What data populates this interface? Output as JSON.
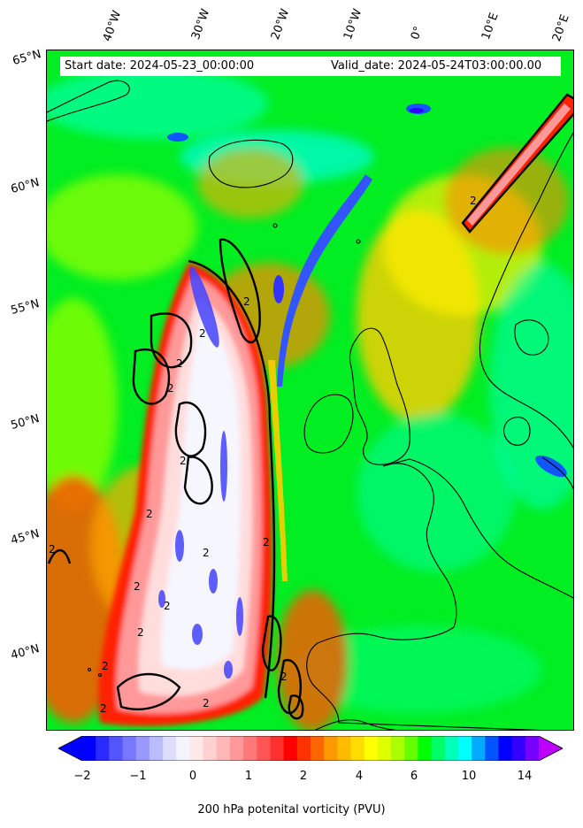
{
  "header": {
    "start_date": "Start date: 2024-05-23_00:00:00",
    "valid_date": "Valid_date: 2024-05-24T03:00:00.00"
  },
  "map": {
    "type": "filled contour map",
    "field": "200 hPa potential vorticity",
    "contour_line_value": "2",
    "longitude_labels": [
      "40°W",
      "30°W",
      "20°W",
      "10°W",
      "0°",
      "10°E",
      "20°E"
    ],
    "latitude_labels": [
      "65°N",
      "60°N",
      "55°N",
      "50°N",
      "45°N",
      "40°N"
    ],
    "features": [
      "North Atlantic",
      "Iceland",
      "British Isles",
      "Scandinavia",
      "Iberia",
      "France"
    ]
  },
  "colorbar": {
    "title": "200 hPa potenital vorticity (PVU)",
    "tick_labels": [
      "−2",
      "−1",
      "0",
      "1",
      "2",
      "4",
      "6",
      "10",
      "14"
    ],
    "extend": "both",
    "colors": [
      "#0000ff",
      "#2a2aff",
      "#5555ff",
      "#7777ff",
      "#9999ff",
      "#bbbbff",
      "#ddddff",
      "#f4f4ff",
      "#ffe8e8",
      "#ffd0d0",
      "#ffb8b8",
      "#ff9898",
      "#ff7878",
      "#ff5555",
      "#ff3030",
      "#ff0000",
      "#ff3300",
      "#ff6600",
      "#ff9900",
      "#ffbb00",
      "#ffdd00",
      "#ffff00",
      "#ddff00",
      "#aaff00",
      "#66ff00",
      "#00ff00",
      "#00ff66",
      "#00ffbb",
      "#00ffff",
      "#00aaff",
      "#0055ff",
      "#0000ff",
      "#3300ff",
      "#7700ff"
    ],
    "under_color": "#0000ff",
    "over_color": "#bb00ff"
  }
}
